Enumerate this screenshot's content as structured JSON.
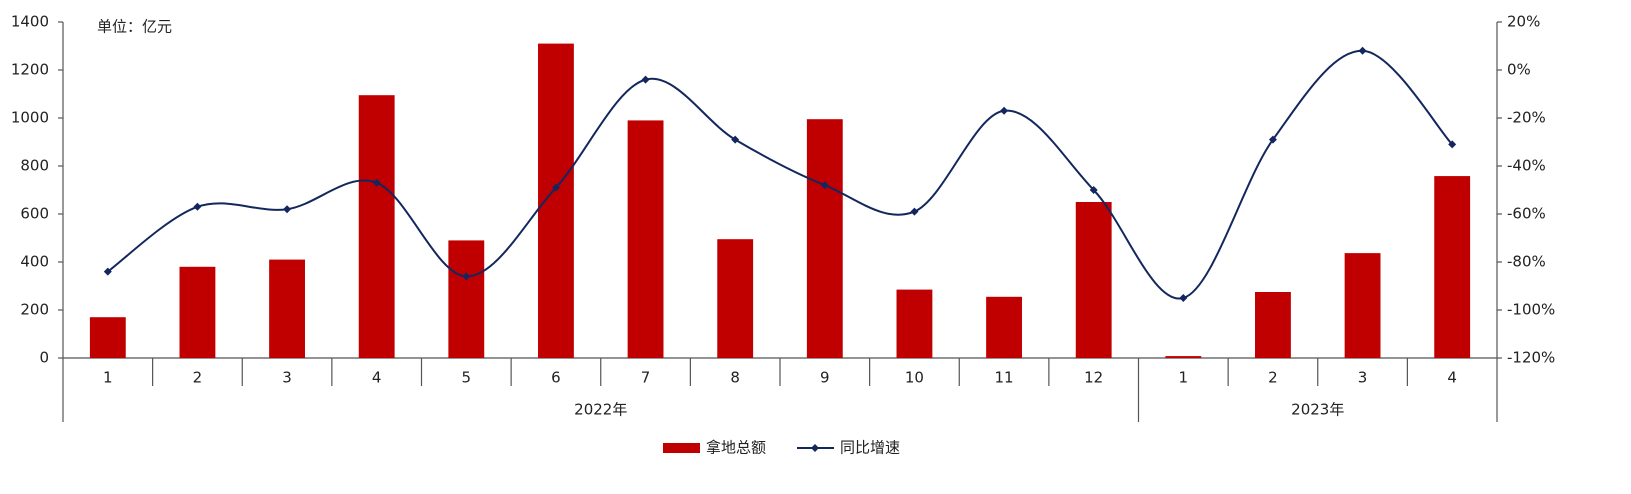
{
  "chart_data": {
    "type": "bar_line",
    "annotation": "单位：亿元",
    "groups": [
      {
        "label": "2022年",
        "categories": [
          "1",
          "2",
          "3",
          "4",
          "5",
          "6",
          "7",
          "8",
          "9",
          "10",
          "11",
          "12"
        ]
      },
      {
        "label": "2023年",
        "categories": [
          "1",
          "2",
          "3",
          "4"
        ]
      }
    ],
    "series": [
      {
        "name": "拿地总额",
        "type": "bar",
        "color": "#c00000",
        "values": [
          170,
          380,
          410,
          1095,
          490,
          1310,
          990,
          495,
          995,
          285,
          255,
          650,
          8,
          275,
          437,
          758
        ]
      },
      {
        "name": "同比增速",
        "type": "line",
        "axis": "y2",
        "color": "#13275e",
        "values": [
          -84,
          -57,
          -58,
          -47,
          -86,
          -49,
          -4,
          -29,
          -48,
          -59,
          -17,
          -50,
          -95,
          -29,
          8,
          -31
        ]
      }
    ],
    "ylim": [
      0,
      1400
    ],
    "yticks": [
      0,
      200,
      400,
      600,
      800,
      1000,
      1200,
      1400
    ],
    "y2lim": [
      -120,
      20
    ],
    "y2ticks": [
      {
        "value": -120,
        "label": "-120%"
      },
      {
        "value": -100,
        "label": "-100%"
      },
      {
        "value": -80,
        "label": "-80%"
      },
      {
        "value": -60,
        "label": "-60%"
      },
      {
        "value": -40,
        "label": "-40%"
      },
      {
        "value": -20,
        "label": "-20%"
      },
      {
        "value": 0,
        "label": "0%"
      },
      {
        "value": 20,
        "label": "20%"
      }
    ],
    "legend": "bottom"
  }
}
